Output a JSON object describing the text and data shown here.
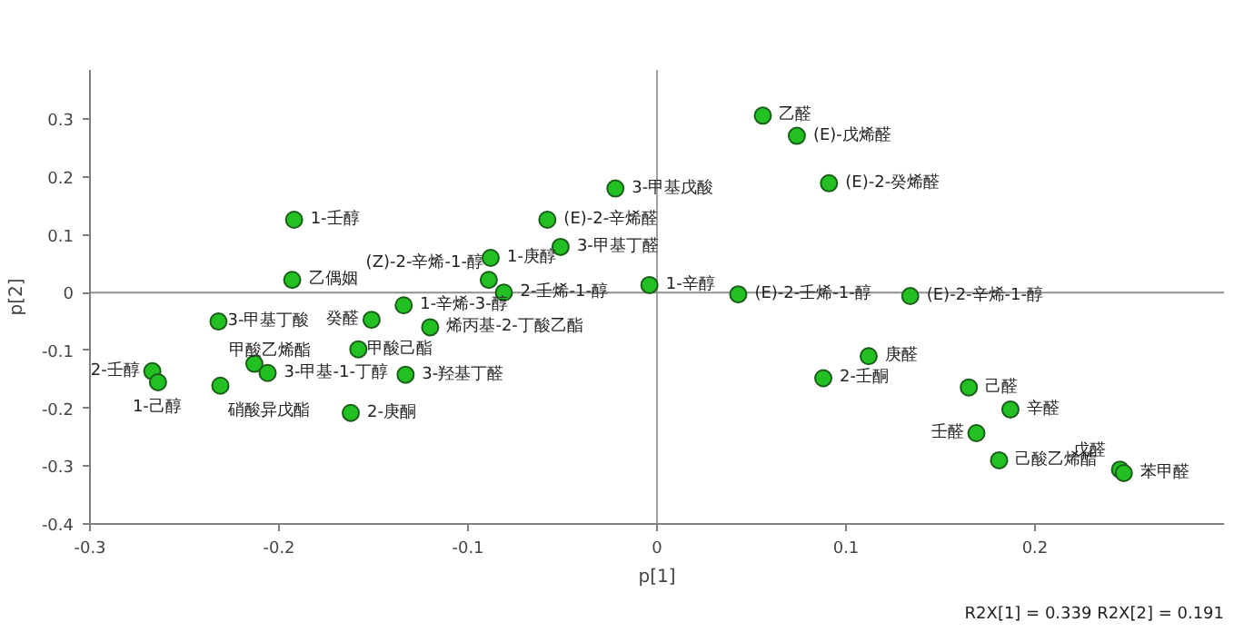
{
  "chart_data": {
    "type": "scatter",
    "xlabel": "p[1]",
    "ylabel": "p[2]",
    "xlim": [
      -0.3,
      0.3
    ],
    "ylim": [
      -0.4,
      0.385
    ],
    "xticks": [
      -0.3,
      -0.2,
      -0.1,
      0,
      0.1,
      0.2
    ],
    "yticks": [
      -0.4,
      -0.3,
      -0.2,
      -0.1,
      0,
      0.1,
      0.2,
      0.3
    ],
    "grid": false,
    "marker": "circle",
    "ref_lines": [
      {
        "axis": "x",
        "value": 0,
        "color": "#a0a0a0"
      },
      {
        "axis": "y",
        "value": 0,
        "color": "#909090"
      }
    ],
    "x": [
      0.056,
      0.074,
      0.091,
      -0.022,
      -0.058,
      -0.051,
      -0.088,
      -0.089,
      -0.081,
      -0.004,
      0.043,
      0.134,
      -0.192,
      -0.193,
      -0.232,
      -0.151,
      -0.134,
      -0.12,
      -0.158,
      -0.133,
      -0.213,
      -0.206,
      -0.267,
      -0.264,
      -0.231,
      -0.162,
      0.112,
      0.088,
      0.165,
      0.187,
      0.169,
      0.181,
      0.245,
      0.247
    ],
    "series": [
      {
        "color": "#22c022",
        "values": [
          0.306,
          0.271,
          0.189,
          0.18,
          0.126,
          0.079,
          0.06,
          0.022,
          0.0,
          0.013,
          -0.003,
          -0.006,
          0.126,
          0.022,
          -0.05,
          -0.047,
          -0.022,
          -0.06,
          -0.098,
          -0.142,
          -0.123,
          -0.139,
          -0.136,
          -0.155,
          -0.161,
          -0.208,
          -0.11,
          -0.148,
          -0.164,
          -0.202,
          -0.243,
          -0.29,
          -0.306,
          -0.312
        ]
      }
    ],
    "annotations": [
      {
        "text": "乙醛",
        "x": 0.056,
        "y": 0.306
      },
      {
        "text": "(E)-戊烯醛",
        "x": 0.074,
        "y": 0.271
      },
      {
        "text": "(E)-2-癸烯醛",
        "x": 0.091,
        "y": 0.189
      },
      {
        "text": "3-甲基戊酸",
        "x": -0.022,
        "y": 0.18
      },
      {
        "text": "(E)-2-辛烯醛",
        "x": -0.058,
        "y": 0.126
      },
      {
        "text": "3-甲基丁醛",
        "x": -0.051,
        "y": 0.079
      },
      {
        "text": "1-庚醇",
        "x": -0.088,
        "y": 0.06
      },
      {
        "text": "(Z)-2-辛烯-1-醇",
        "x": -0.089,
        "y": 0.022
      },
      {
        "text": "2-壬烯-1-醇",
        "x": -0.081,
        "y": 0.0
      },
      {
        "text": "1-辛醇",
        "x": -0.004,
        "y": 0.013
      },
      {
        "text": "(E)-2-壬烯-1-醇",
        "x": 0.043,
        "y": -0.003
      },
      {
        "text": "(E)-2-辛烯-1-醇",
        "x": 0.134,
        "y": -0.006
      },
      {
        "text": "1-壬醇",
        "x": -0.192,
        "y": 0.126
      },
      {
        "text": "乙偶姻",
        "x": -0.193,
        "y": 0.022
      },
      {
        "text": "3-甲基丁酸",
        "x": -0.232,
        "y": -0.05
      },
      {
        "text": "癸醛",
        "x": -0.151,
        "y": -0.047
      },
      {
        "text": "1-辛烯-3-醇",
        "x": -0.134,
        "y": -0.022
      },
      {
        "text": "烯丙基-2-丁酸乙酯",
        "x": -0.12,
        "y": -0.06
      },
      {
        "text": "甲酸己酯",
        "x": -0.158,
        "y": -0.098
      },
      {
        "text": "3-羟基丁醛",
        "x": -0.133,
        "y": -0.142
      },
      {
        "text": "甲酸乙烯酯",
        "x": -0.213,
        "y": -0.123
      },
      {
        "text": "3-甲基-1-丁醇",
        "x": -0.206,
        "y": -0.139
      },
      {
        "text": "2-壬醇",
        "x": -0.267,
        "y": -0.136
      },
      {
        "text": "1-己醇",
        "x": -0.264,
        "y": -0.155
      },
      {
        "text": "硝酸异戊酯",
        "x": -0.231,
        "y": -0.161
      },
      {
        "text": "2-庚酮",
        "x": -0.162,
        "y": -0.208
      },
      {
        "text": "庚醛",
        "x": 0.112,
        "y": -0.11
      },
      {
        "text": "2-壬酮",
        "x": 0.088,
        "y": -0.148
      },
      {
        "text": "己醛",
        "x": 0.165,
        "y": -0.164
      },
      {
        "text": "辛醛",
        "x": 0.187,
        "y": -0.202
      },
      {
        "text": "壬醛",
        "x": 0.169,
        "y": -0.243
      },
      {
        "text": "己酸乙烯酯",
        "x": 0.181,
        "y": -0.29
      },
      {
        "text": "戊醛",
        "x": 0.245,
        "y": -0.306
      },
      {
        "text": "苯甲醛",
        "x": 0.247,
        "y": -0.312
      },
      "R2X[1] = 0.339 R2X[2] = 0.191"
    ]
  }
}
